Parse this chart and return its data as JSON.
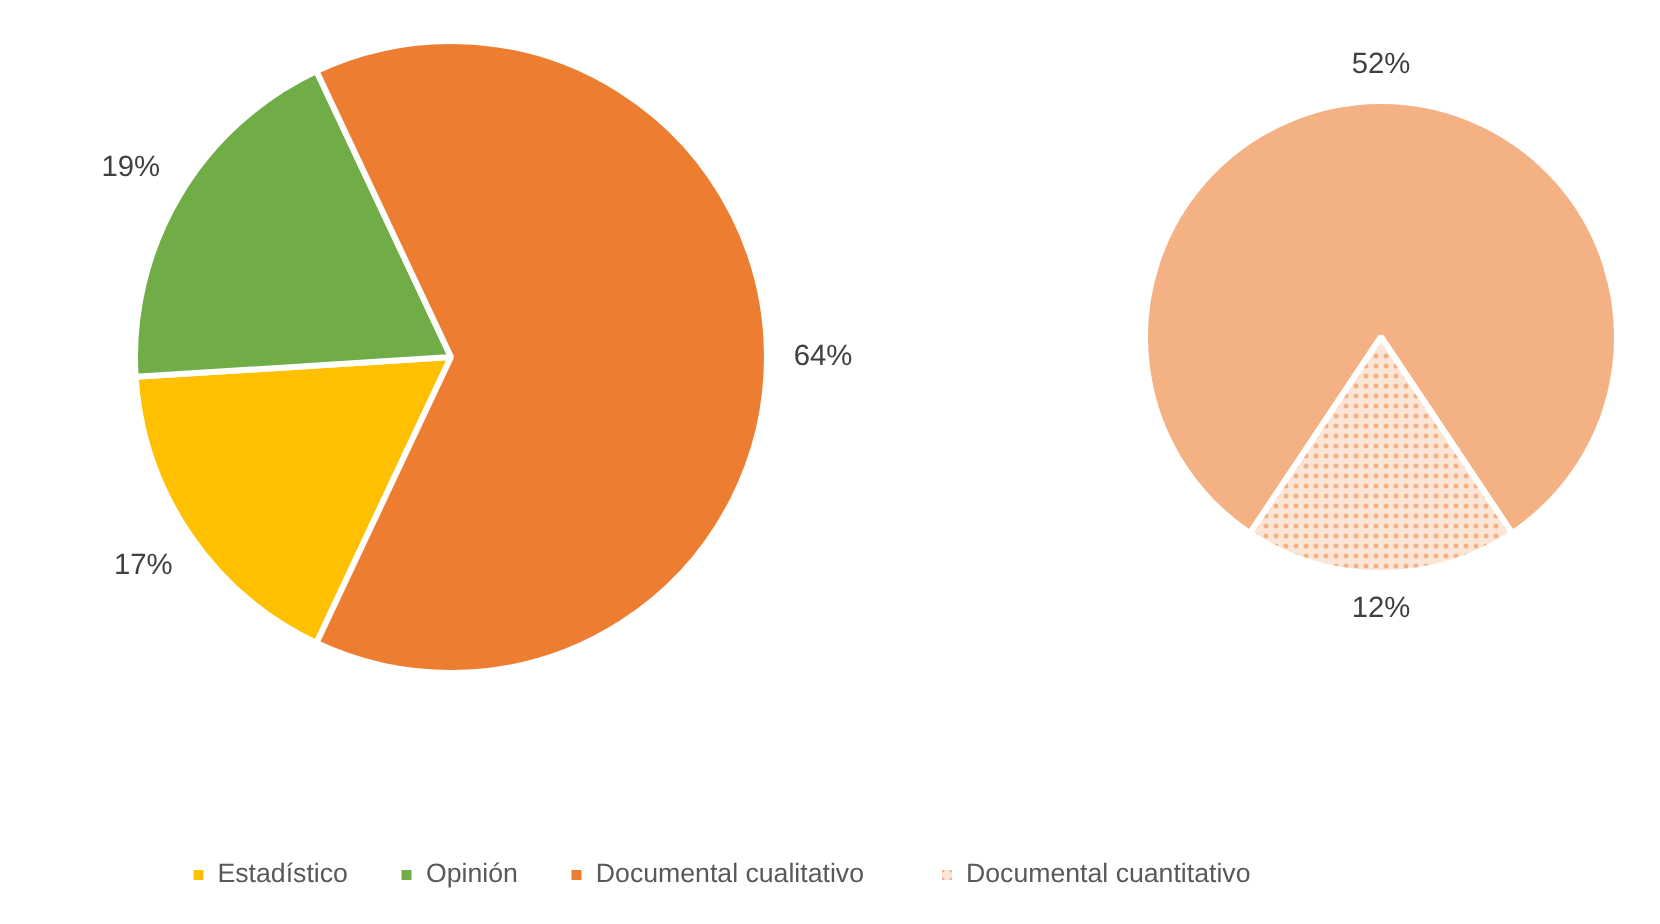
{
  "chart_data": [
    {
      "type": "pie",
      "categories": [
        "Estadístico",
        "Opinión",
        "Documental cualitativo"
      ],
      "values": [
        17,
        19,
        64
      ],
      "colors": [
        "#ffc000",
        "#70ad47",
        "#ed7d31"
      ],
      "value_labels": [
        "17%",
        "19%",
        "64%"
      ],
      "legend": "bottom"
    },
    {
      "type": "pie",
      "categories": [
        null,
        "Documental cuantitativo"
      ],
      "values": [
        52,
        12
      ],
      "colors": [
        "#f4b183",
        "#fbe5d6"
      ],
      "value_labels": [
        "52%",
        "12%"
      ],
      "legend": "bottom"
    }
  ]
}
